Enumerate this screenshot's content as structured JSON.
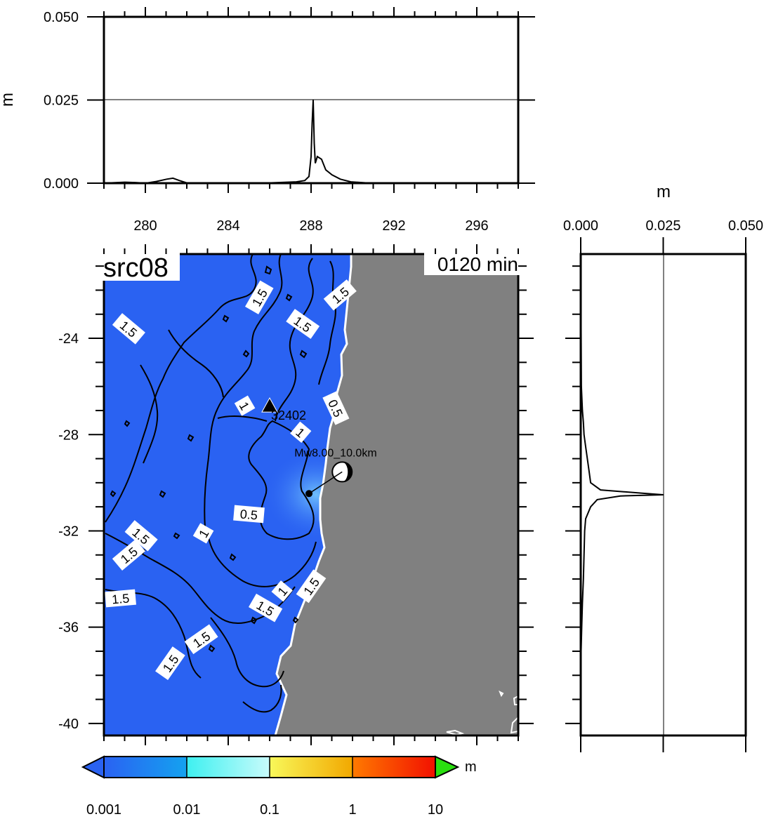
{
  "top_panel": {
    "ylabel": "m",
    "yticks": [
      "0.000",
      "0.025",
      "0.050"
    ],
    "ylim": [
      0,
      0.05
    ],
    "reference_value": 0.025,
    "xlim": [
      278,
      297.8
    ]
  },
  "side_panel": {
    "xlabel": "m",
    "xticks": [
      "0.000",
      "0.025",
      "0.050"
    ],
    "xlim": [
      0,
      0.05
    ],
    "reference_value": 0.025
  },
  "map": {
    "source_label": "src08",
    "time_label": "0120 min",
    "lon_ticks": [
      "280",
      "284",
      "288",
      "292",
      "296"
    ],
    "lat_ticks": [
      "-24",
      "-28",
      "-32",
      "-36",
      "-40"
    ],
    "lon_range": [
      278,
      298
    ],
    "lat_range": [
      -40.5,
      -20.5
    ],
    "station_label": "32402",
    "event_label": "Mw8.00_10.0km",
    "ocean_color": "#2a62f2",
    "land_color": "#808080",
    "contour_labels": [
      {
        "text": "1.5",
        "lon": 279.2,
        "lat": -23.6,
        "angle": 40
      },
      {
        "text": "1.5",
        "lon": 285.5,
        "lat": -22.3,
        "angle": -60
      },
      {
        "text": "1.5",
        "lon": 287.6,
        "lat": -23.4,
        "angle": 35
      },
      {
        "text": "1.5",
        "lon": 289.4,
        "lat": -22.2,
        "angle": -40
      },
      {
        "text": "1",
        "lon": 284.8,
        "lat": -26.8,
        "angle": 60
      },
      {
        "text": "0.5",
        "lon": 289.2,
        "lat": -26.9,
        "angle": 65
      },
      {
        "text": "1",
        "lon": 287.5,
        "lat": -27.9,
        "angle": 40
      },
      {
        "text": "0.5",
        "lon": 285.0,
        "lat": -31.3,
        "angle": 5
      },
      {
        "text": "1",
        "lon": 282.8,
        "lat": -32.1,
        "angle": -60
      },
      {
        "text": "1.5",
        "lon": 279.8,
        "lat": -32.2,
        "angle": 40
      },
      {
        "text": "1.5",
        "lon": 279.2,
        "lat": -33.0,
        "angle": -40
      },
      {
        "text": "1.5",
        "lon": 278.8,
        "lat": -34.8,
        "angle": -5
      },
      {
        "text": "1",
        "lon": 286.6,
        "lat": -34.5,
        "angle": -50
      },
      {
        "text": "1.5",
        "lon": 288.0,
        "lat": -34.3,
        "angle": -55
      },
      {
        "text": "1.5",
        "lon": 285.8,
        "lat": -35.2,
        "angle": 30
      },
      {
        "text": "1.5",
        "lon": 282.7,
        "lat": -36.5,
        "angle": -35
      },
      {
        "text": "1.5",
        "lon": 281.2,
        "lat": -37.5,
        "angle": -55
      }
    ]
  },
  "colorbar": {
    "unit": "m",
    "tick_labels": [
      "0.001",
      "0.01",
      "0.1",
      "1",
      "10"
    ],
    "colors": {
      "under": "#2a62f2",
      "seg1_start": "#2a62f2",
      "seg1_end": "#14a2f0",
      "seg2_start": "#3ef0f0",
      "seg2_end": "#c8fbfb",
      "seg3_start": "#f8f85a",
      "seg3_end": "#f2a800",
      "seg4_start": "#ff7a00",
      "seg4_end": "#f21000",
      "over": "#2adf10"
    }
  },
  "chart_data": {
    "type": "line",
    "series": [
      {
        "x": [
          278,
          279,
          279.5,
          280,
          280.5,
          281,
          281.3,
          281.6,
          282,
          284,
          286,
          287.2,
          287.6,
          287.8,
          287.9,
          287.95,
          288.0,
          288.05,
          288.1,
          288.2,
          288.4,
          288.6,
          288.9,
          289.3,
          289.8,
          290.5,
          297.8
        ],
        "values": [
          0.0,
          0.0003,
          0.0002,
          0.0,
          0.0005,
          0.0012,
          0.0015,
          0.0008,
          0.0,
          0.0,
          0.0001,
          0.0004,
          0.0008,
          0.002,
          0.008,
          0.018,
          0.025,
          0.012,
          0.006,
          0.008,
          0.0072,
          0.004,
          0.0025,
          0.0012,
          0.0004,
          0.0001,
          0.0
        ]
      },
      {
        "y": [
          -20.5,
          -26,
          -27,
          -27.5,
          -28,
          -28.5,
          -29,
          -29.5,
          -30,
          -30.3,
          -30.45,
          -30.5,
          -30.55,
          -30.7,
          -31,
          -31.5,
          -32,
          -33,
          -34,
          -35,
          -36,
          -37,
          -40.5
        ],
        "values": [
          0.0,
          0.0002,
          0.0005,
          0.0008,
          0.001,
          0.0015,
          0.002,
          0.0025,
          0.003,
          0.006,
          0.02,
          0.025,
          0.012,
          0.005,
          0.003,
          0.0015,
          0.0012,
          0.001,
          0.0008,
          0.0005,
          0.0003,
          0.0001,
          0.0
        ]
      }
    ]
  }
}
